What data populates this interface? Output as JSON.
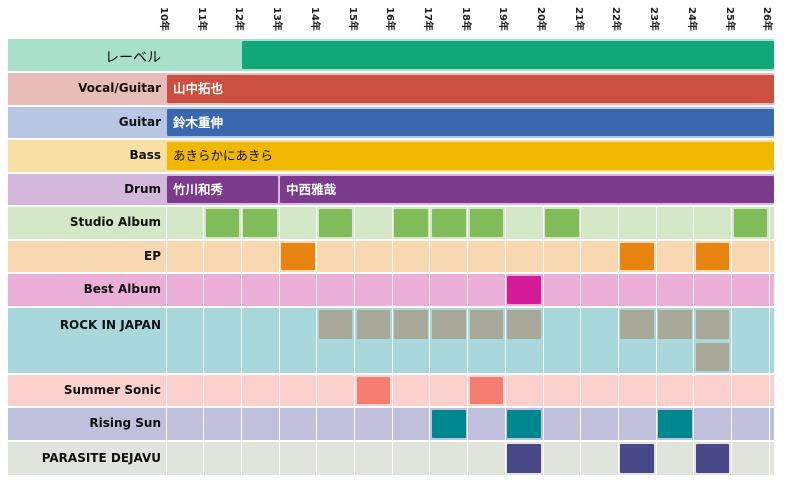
{
  "years": [
    "10年",
    "11年",
    "12年",
    "13年",
    "14年",
    "15年",
    "16年",
    "17年",
    "18年",
    "19年",
    "20年",
    "21年",
    "22年",
    "23年",
    "24年",
    "25年",
    "26年"
  ],
  "lanes": [
    {
      "key": "label",
      "title": "レーベル",
      "bg": "#a8e0cc",
      "big": true,
      "bars": [
        {
          "from": 2,
          "to": 16,
          "color": "#10a878",
          "text": ""
        }
      ]
    },
    {
      "key": "vocal",
      "title": "Vocal/Guitar",
      "bg": "#e8bcb8",
      "bars": [
        {
          "from": 0,
          "to": 16,
          "color": "#cb5040",
          "text": "山中拓也"
        }
      ]
    },
    {
      "key": "guitar",
      "title": "Guitar",
      "bg": "#b8c8e4",
      "bars": [
        {
          "from": 0,
          "to": 16,
          "color": "#3968b0",
          "text": "鈴木重伸"
        }
      ]
    },
    {
      "key": "bass",
      "title": "Bass",
      "bg": "#f8e0a4",
      "bars": [
        {
          "from": 0,
          "to": 16,
          "color": "#f0b800",
          "text": "あきらかにあきら",
          "dark": true
        }
      ]
    },
    {
      "key": "drum",
      "title": "Drum",
      "bg": "#d4b8dc",
      "bars": [
        {
          "from": 0,
          "to": 3,
          "color": "#7c3a8c",
          "text": "竹川和秀"
        },
        {
          "from": 3,
          "to": 16,
          "color": "#7c3a8c",
          "text": "中西雅哉"
        }
      ]
    },
    {
      "key": "studio",
      "title": "Studio Album",
      "bg": "#d4e8c8",
      "cellcolor": "#80bc58",
      "rows": [
        [
          1,
          2,
          4,
          6,
          7,
          8,
          10,
          15
        ]
      ]
    },
    {
      "key": "ep",
      "title": "EP",
      "bg": "#f8d8b0",
      "cellcolor": "#e88410",
      "rows": [
        [
          3,
          12,
          14
        ]
      ]
    },
    {
      "key": "best",
      "title": "Best Album",
      "bg": "#ecb0d8",
      "cellcolor": "#d41c98",
      "rows": [
        [
          9
        ]
      ]
    },
    {
      "key": "rij",
      "title": "ROCK IN JAPAN",
      "bg": "#a8d8dc",
      "cellcolor": "#a8a898",
      "rows": [
        [
          4,
          5,
          6,
          7,
          8,
          9,
          12,
          13,
          14
        ],
        [
          14
        ]
      ]
    },
    {
      "key": "summer",
      "title": "Summer Sonic",
      "bg": "#fcd0cc",
      "cellcolor": "#f47c70",
      "rows": [
        [
          5,
          8
        ]
      ]
    },
    {
      "key": "rising",
      "title": "Rising Sun",
      "bg": "#c0c0dc",
      "cellcolor": "#008890",
      "rows": [
        [
          7,
          9,
          13
        ]
      ]
    },
    {
      "key": "parasite",
      "title": "PARASITE DEJAVU",
      "bg": "#e0e4dc",
      "cellcolor": "#484888",
      "rows": [
        [
          9,
          12,
          14
        ]
      ]
    }
  ]
}
